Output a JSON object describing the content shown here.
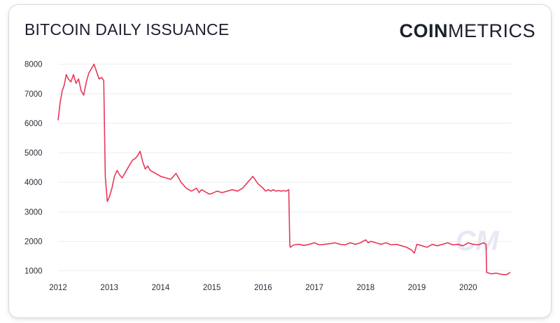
{
  "header": {
    "title": "BITCOIN DAILY ISSUANCE",
    "logo_bold": "COIN",
    "logo_light": "METRICS"
  },
  "watermark": {
    "text": "CM"
  },
  "colors": {
    "line": "#e8375a",
    "text": "#1b1f2e",
    "grid": "#eeeeee"
  },
  "chart_data": {
    "type": "line",
    "title": "BITCOIN DAILY ISSUANCE",
    "xlabel": "",
    "ylabel": "",
    "xlim": [
      2012.0,
      2020.85
    ],
    "ylim": [
      800,
      8300
    ],
    "yticks": [
      1000,
      2000,
      3000,
      4000,
      5000,
      6000,
      7000,
      8000
    ],
    "xticks": [
      2012,
      2013,
      2014,
      2015,
      2016,
      2017,
      2018,
      2019,
      2020
    ],
    "grid": "horizontal",
    "series": [
      {
        "x": [
          2012.0,
          2012.04,
          2012.08,
          2012.12,
          2012.16,
          2012.2,
          2012.25,
          2012.3,
          2012.35,
          2012.4,
          2012.45,
          2012.5,
          2012.55,
          2012.6,
          2012.65,
          2012.7,
          2012.75,
          2012.8,
          2012.85,
          2012.89,
          2012.92,
          2012.96,
          2013.0,
          2013.05,
          2013.1,
          2013.15,
          2013.2,
          2013.25,
          2013.3,
          2013.35,
          2013.4,
          2013.45,
          2013.5,
          2013.55,
          2013.6,
          2013.65,
          2013.7,
          2013.75,
          2013.8,
          2013.85,
          2013.9,
          2013.95,
          2014.0,
          2014.1,
          2014.2,
          2014.3,
          2014.4,
          2014.5,
          2014.6,
          2014.7,
          2014.75,
          2014.8,
          2014.85,
          2014.9,
          2014.95,
          2015.0,
          2015.1,
          2015.2,
          2015.3,
          2015.4,
          2015.5,
          2015.6,
          2015.7,
          2015.8,
          2015.9,
          2016.0,
          2016.05,
          2016.1,
          2016.15,
          2016.2,
          2016.25,
          2016.3,
          2016.35,
          2016.4,
          2016.45,
          2016.5,
          2016.52,
          2016.53,
          2016.6,
          2016.7,
          2016.8,
          2016.9,
          2017.0,
          2017.1,
          2017.2,
          2017.3,
          2017.4,
          2017.5,
          2017.6,
          2017.7,
          2017.8,
          2017.9,
          2018.0,
          2018.05,
          2018.1,
          2018.2,
          2018.3,
          2018.4,
          2018.5,
          2018.6,
          2018.7,
          2018.8,
          2018.85,
          2018.9,
          2018.95,
          2019.0,
          2019.1,
          2019.2,
          2019.3,
          2019.4,
          2019.5,
          2019.6,
          2019.7,
          2019.8,
          2019.9,
          2020.0,
          2020.1,
          2020.2,
          2020.3,
          2020.35,
          2020.36,
          2020.45,
          2020.55,
          2020.65,
          2020.75,
          2020.82
        ],
        "y": [
          6100,
          6700,
          7100,
          7300,
          7650,
          7500,
          7400,
          7650,
          7350,
          7500,
          7100,
          6950,
          7400,
          7700,
          7850,
          8000,
          7750,
          7500,
          7550,
          7450,
          4200,
          3350,
          3500,
          3800,
          4200,
          4400,
          4250,
          4150,
          4300,
          4450,
          4600,
          4750,
          4800,
          4900,
          5050,
          4700,
          4450,
          4550,
          4400,
          4350,
          4300,
          4250,
          4200,
          4150,
          4100,
          4300,
          4000,
          3800,
          3700,
          3800,
          3650,
          3750,
          3700,
          3650,
          3600,
          3620,
          3700,
          3650,
          3700,
          3750,
          3700,
          3800,
          4000,
          4200,
          3950,
          3800,
          3700,
          3750,
          3700,
          3750,
          3700,
          3720,
          3700,
          3720,
          3700,
          3750,
          1900,
          1800,
          1880,
          1900,
          1860,
          1900,
          1950,
          1880,
          1900,
          1920,
          1950,
          1900,
          1880,
          1950,
          1900,
          1950,
          2050,
          1950,
          2000,
          1950,
          1900,
          1950,
          1880,
          1900,
          1850,
          1800,
          1750,
          1700,
          1600,
          1900,
          1850,
          1800,
          1900,
          1850,
          1900,
          1950,
          1880,
          1900,
          1850,
          1950,
          1900,
          1880,
          1950,
          1900,
          950,
          900,
          920,
          880,
          870,
          950
        ]
      }
    ]
  }
}
